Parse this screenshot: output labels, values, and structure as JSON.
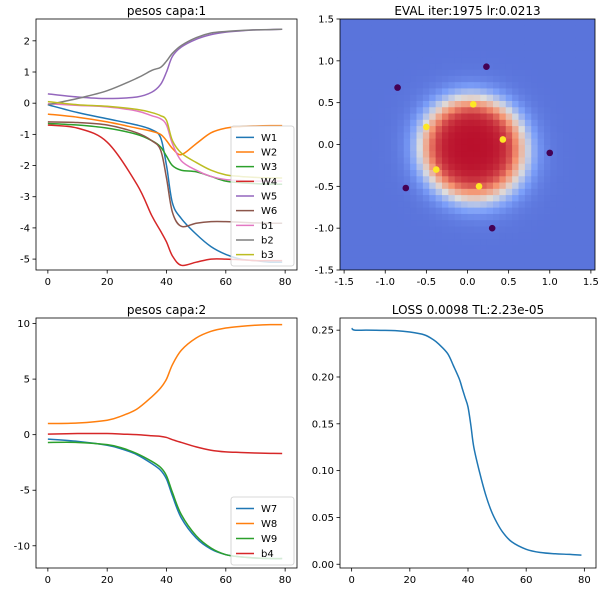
{
  "colors": {
    "tab_blue": "#1f77b4",
    "tab_orange": "#ff7f0e",
    "tab_green": "#2ca02c",
    "tab_red": "#d62728",
    "tab_purple": "#9467bd",
    "tab_brown": "#8c564b",
    "tab_pink": "#e377c2",
    "tab_gray": "#7f7f7f",
    "tab_olive": "#bcbd22",
    "class0_point": "#440154",
    "class1_point": "#fde725"
  },
  "chart_data": [
    {
      "id": "p1",
      "type": "line",
      "title": "pesos capa:1",
      "xlabel": "",
      "ylabel": "",
      "xlim": [
        -4,
        84
      ],
      "ylim": [
        -5.35,
        2.7
      ],
      "xticks": [
        0,
        20,
        40,
        60,
        80
      ],
      "yticks": [
        2,
        1,
        0,
        -1,
        -2,
        -3,
        -4,
        -5
      ],
      "x": [
        0,
        10,
        20,
        30,
        35,
        38,
        40,
        42,
        45,
        50,
        55,
        60,
        65,
        70,
        75,
        79
      ],
      "legend_loc": "lower right",
      "series": [
        {
          "name": "W1",
          "color": "#1f77b4",
          "values": [
            -0.05,
            -0.3,
            -0.5,
            -0.7,
            -0.85,
            -1.1,
            -2.0,
            -3.2,
            -3.7,
            -4.2,
            -4.6,
            -4.85,
            -5.0,
            -5.05,
            -5.1,
            -5.1
          ]
        },
        {
          "name": "W2",
          "color": "#ff7f0e",
          "values": [
            -0.35,
            -0.45,
            -0.6,
            -0.8,
            -0.9,
            -1.0,
            -1.2,
            -1.45,
            -1.65,
            -1.3,
            -0.95,
            -0.8,
            -0.75,
            -0.73,
            -0.72,
            -0.72
          ]
        },
        {
          "name": "W3",
          "color": "#2ca02c",
          "values": [
            -0.65,
            -0.7,
            -0.8,
            -1.0,
            -1.2,
            -1.4,
            -1.7,
            -2.0,
            -2.15,
            -2.2,
            -2.35,
            -2.5,
            -2.55,
            -2.58,
            -2.6,
            -2.6
          ]
        },
        {
          "name": "W4",
          "color": "#d62728",
          "values": [
            -0.7,
            -0.8,
            -1.25,
            -2.6,
            -3.6,
            -4.1,
            -4.45,
            -4.9,
            -5.2,
            -5.1,
            -5.0,
            -5.0,
            -5.02,
            -5.05,
            -5.05,
            -5.05
          ]
        },
        {
          "name": "W5",
          "color": "#9467bd",
          "values": [
            0.3,
            0.2,
            0.15,
            0.2,
            0.35,
            0.6,
            1.0,
            1.5,
            1.8,
            2.05,
            2.2,
            2.28,
            2.32,
            2.35,
            2.36,
            2.37
          ]
        },
        {
          "name": "W6",
          "color": "#8c564b",
          "values": [
            -0.6,
            -0.62,
            -0.7,
            -0.95,
            -1.2,
            -1.5,
            -2.4,
            -3.5,
            -3.95,
            -3.85,
            -3.8,
            -3.8,
            -3.82,
            -3.84,
            -3.85,
            -3.85
          ]
        },
        {
          "name": "b1",
          "color": "#e377c2",
          "values": [
            -0.02,
            -0.07,
            -0.12,
            -0.25,
            -0.4,
            -0.5,
            -0.7,
            -1.3,
            -1.85,
            -2.15,
            -2.35,
            -2.45,
            -2.48,
            -2.5,
            -2.5,
            -2.5
          ]
        },
        {
          "name": "b2",
          "color": "#7f7f7f",
          "values": [
            -0.05,
            0.15,
            0.4,
            0.8,
            1.05,
            1.15,
            1.35,
            1.6,
            1.85,
            2.1,
            2.25,
            2.3,
            2.33,
            2.35,
            2.36,
            2.37
          ]
        },
        {
          "name": "b3",
          "color": "#bcbd22",
          "values": [
            0.05,
            -0.05,
            -0.1,
            -0.2,
            -0.3,
            -0.4,
            -0.55,
            -1.2,
            -1.6,
            -1.9,
            -2.15,
            -2.3,
            -2.35,
            -2.38,
            -2.4,
            -2.4
          ]
        }
      ]
    },
    {
      "id": "p2",
      "type": "heatmap",
      "title": "EVAL iter:1975 lr:0.0213",
      "xlabel": "",
      "ylabel": "",
      "xlim": [
        -1.55,
        1.55
      ],
      "ylim": [
        -1.5,
        1.5
      ],
      "xticks": [
        -1.5,
        -1.0,
        -0.5,
        0.0,
        0.5,
        1.0,
        1.5
      ],
      "yticks": [
        1.5,
        1.0,
        0.5,
        0.0,
        -0.5,
        -1.0,
        -1.5
      ],
      "colormap": "coolwarm",
      "points": [
        {
          "x": 0.07,
          "y": 0.48,
          "label": 1
        },
        {
          "x": -0.5,
          "y": 0.21,
          "label": 1
        },
        {
          "x": 0.43,
          "y": 0.06,
          "label": 1
        },
        {
          "x": -0.38,
          "y": -0.3,
          "label": 1
        },
        {
          "x": 0.14,
          "y": -0.5,
          "label": 1
        },
        {
          "x": 0.23,
          "y": 0.93,
          "label": 0
        },
        {
          "x": -0.85,
          "y": 0.68,
          "label": 0
        },
        {
          "x": 1.0,
          "y": -0.1,
          "label": 0
        },
        {
          "x": -0.75,
          "y": -0.52,
          "label": 0
        },
        {
          "x": 0.3,
          "y": -1.0,
          "label": 0
        }
      ]
    },
    {
      "id": "p3",
      "type": "line",
      "title": "pesos capa:2",
      "xlabel": "",
      "ylabel": "",
      "xlim": [
        -4,
        84
      ],
      "ylim": [
        -12,
        10.5
      ],
      "xticks": [
        0,
        20,
        40,
        60,
        80
      ],
      "yticks": [
        10,
        5,
        0,
        -5,
        -10
      ],
      "x": [
        0,
        10,
        20,
        25,
        30,
        35,
        38,
        40,
        42,
        45,
        50,
        55,
        60,
        65,
        70,
        75,
        79
      ],
      "legend_loc": "lower right",
      "series": [
        {
          "name": "W7",
          "color": "#1f77b4",
          "values": [
            -0.4,
            -0.6,
            -0.95,
            -1.3,
            -1.8,
            -2.6,
            -3.2,
            -4.0,
            -5.5,
            -7.5,
            -9.3,
            -10.3,
            -10.8,
            -11.0,
            -11.1,
            -11.15,
            -11.15
          ]
        },
        {
          "name": "W8",
          "color": "#ff7f0e",
          "values": [
            1.0,
            1.05,
            1.3,
            1.7,
            2.3,
            3.4,
            4.2,
            5.0,
            6.3,
            7.6,
            8.7,
            9.3,
            9.6,
            9.75,
            9.85,
            9.9,
            9.9
          ]
        },
        {
          "name": "W9",
          "color": "#2ca02c",
          "values": [
            -0.7,
            -0.7,
            -0.9,
            -1.2,
            -1.7,
            -2.4,
            -2.95,
            -3.7,
            -5.2,
            -7.2,
            -9.1,
            -10.2,
            -10.8,
            -11.0,
            -11.1,
            -11.15,
            -11.15
          ]
        },
        {
          "name": "b4",
          "color": "#d62728",
          "values": [
            0.05,
            0.1,
            0.1,
            0.05,
            0.0,
            -0.1,
            -0.15,
            -0.25,
            -0.45,
            -0.7,
            -1.1,
            -1.4,
            -1.55,
            -1.6,
            -1.65,
            -1.68,
            -1.7
          ]
        }
      ]
    },
    {
      "id": "p4",
      "type": "line",
      "title": "LOSS 0.0098 TL:2.23e-05",
      "xlabel": "",
      "ylabel": "",
      "xlim": [
        -4,
        84
      ],
      "ylim": [
        -0.004,
        0.263
      ],
      "xticks": [
        0,
        20,
        40,
        60,
        80
      ],
      "yticks": [
        0.25,
        0.2,
        0.15,
        0.1,
        0.05,
        0.0
      ],
      "x": [
        0,
        1,
        5,
        10,
        15,
        20,
        25,
        28,
        30,
        33,
        35,
        37,
        38,
        39,
        40,
        41,
        42,
        44,
        46,
        48,
        50,
        52,
        55,
        60,
        65,
        70,
        75,
        79
      ],
      "series": [
        {
          "name": "",
          "color": "#1f77b4",
          "values": [
            0.252,
            0.25,
            0.25,
            0.2498,
            0.2495,
            0.248,
            0.245,
            0.24,
            0.235,
            0.225,
            0.212,
            0.198,
            0.188,
            0.178,
            0.168,
            0.148,
            0.125,
            0.098,
            0.075,
            0.057,
            0.044,
            0.034,
            0.024,
            0.016,
            0.0125,
            0.0112,
            0.0105,
            0.0098
          ]
        }
      ]
    }
  ]
}
